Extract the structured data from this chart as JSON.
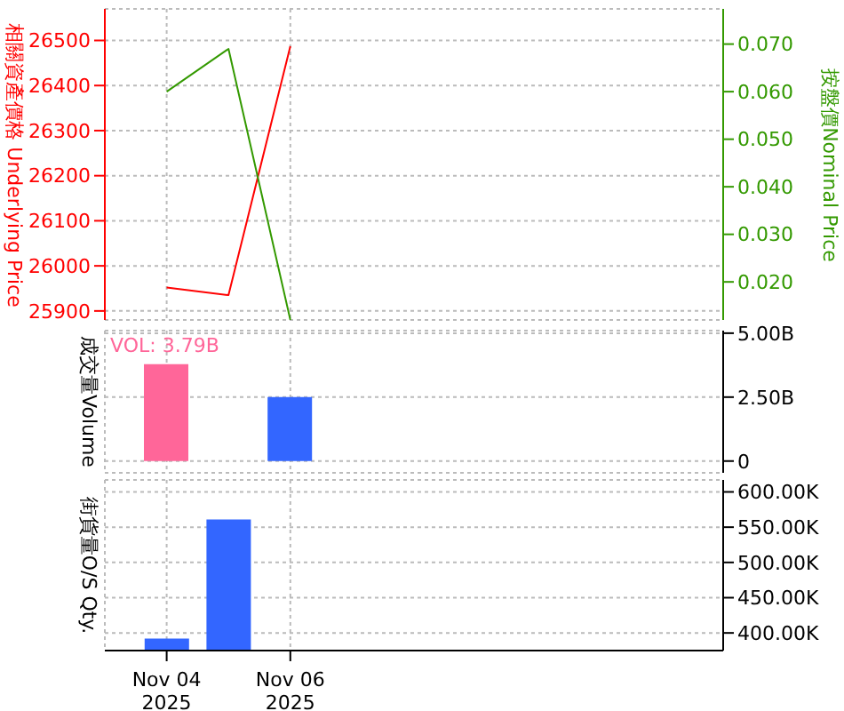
{
  "chart_data": [
    {
      "type": "line",
      "x": [
        "2025-11-04",
        "2025-11-05",
        "2025-11-06"
      ],
      "xlim": [
        "2025-11-03",
        "2025-11-13"
      ],
      "xticks": [
        {
          "value": "2025-11-04",
          "label": null
        },
        {
          "value": "2025-11-06",
          "label": null
        }
      ],
      "tick_labels": "y",
      "ylabel": "相關資產價格 Underlying Price",
      "y2label": "按盤價Nominal Price",
      "ylim": [
        25880,
        26570
      ],
      "yticks": [
        25900,
        26000,
        26100,
        26200,
        26300,
        26400,
        26500
      ],
      "y2lim": [
        0.012,
        0.0774
      ],
      "y2ticks": [
        {
          "value": 0.02,
          "label": "0.020"
        },
        {
          "value": 0.03,
          "label": "0.030"
        },
        {
          "value": 0.04,
          "label": "0.040"
        },
        {
          "value": 0.05,
          "label": "0.050"
        },
        {
          "value": 0.06,
          "label": "0.060"
        },
        {
          "value": 0.07,
          "label": "0.070"
        }
      ],
      "grid": true,
      "marker": "none",
      "series": [
        {
          "color": "#ff0000",
          "values": [
            25952,
            25935,
            26487
          ]
        },
        {
          "color": "#339900",
          "values": [
            0.06,
            0.069,
            0.012
          ],
          "axis": "y2"
        }
      ]
    },
    {
      "type": "bar",
      "x": [
        "2025-11-04",
        "2025-11-06"
      ],
      "xlim": [
        "2025-11-03",
        "2025-11-13"
      ],
      "xticks": [
        {
          "value": "2025-11-04",
          "label": null
        },
        {
          "value": "2025-11-06",
          "label": null
        }
      ],
      "tick_labels": "y",
      "ylabel": "成交量Volume",
      "ylim": [
        -0.46,
        5.1
      ],
      "yticks": [
        0,
        {
          "value": 2.5,
          "label": "2.50B"
        },
        {
          "value": 5,
          "label": "5.00B"
        }
      ],
      "grid": true,
      "annotations": [
        "VOL: 3.79B"
      ],
      "series": [
        {
          "colors": [
            "#ff6699",
            "#3366ff"
          ],
          "values": [
            3.79,
            2.5
          ]
        }
      ]
    },
    {
      "type": "bar",
      "x": [
        "2025-11-04",
        "2025-11-05"
      ],
      "xlim": [
        "2025-11-03",
        "2025-11-13"
      ],
      "xticks": [
        {
          "value": "2025-11-04",
          "label": "Nov 04\n2025"
        },
        {
          "value": "2025-11-06",
          "label": "Nov 06\n2025"
        }
      ],
      "ylabel": "街貨量O/S Qty.",
      "ylim": [
        375,
        617
      ],
      "yticks": [
        {
          "value": 400,
          "label": "400.00K"
        },
        {
          "value": 450,
          "label": "450.00K"
        },
        {
          "value": 500,
          "label": "500.00K"
        },
        {
          "value": 550,
          "label": "550.00K"
        },
        {
          "value": 600,
          "label": "600.00K"
        }
      ],
      "grid": true,
      "series": [
        {
          "colors": [
            "#3366ff",
            "#3366ff"
          ],
          "values": [
            392,
            561
          ]
        }
      ]
    }
  ]
}
